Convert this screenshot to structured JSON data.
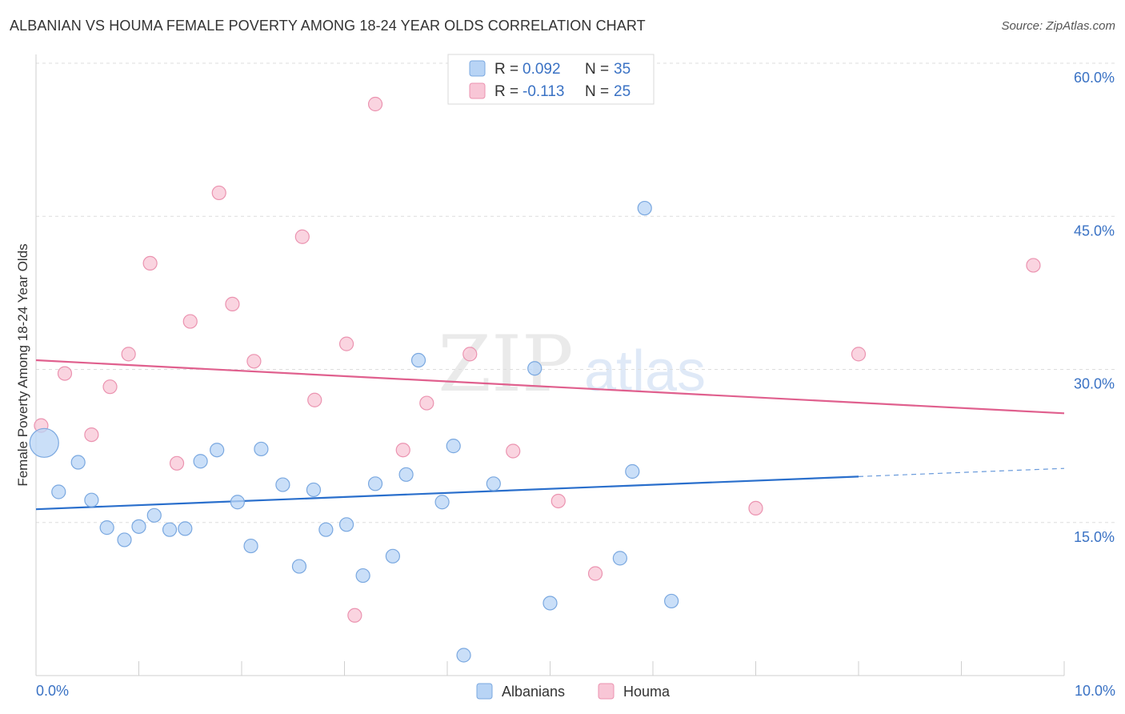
{
  "title": "ALBANIAN VS HOUMA FEMALE POVERTY AMONG 18-24 YEAR OLDS CORRELATION CHART",
  "source": "Source: ZipAtlas.com",
  "watermark": {
    "zip": "ZIP",
    "atlas": "atlas"
  },
  "legend_box": {
    "r_label": "R = ",
    "n_label": "N = ",
    "rows": [
      {
        "r": "0.092",
        "n": "35"
      },
      {
        "r": "-0.113",
        "n": "25"
      }
    ]
  },
  "chart_data": {
    "type": "scatter",
    "title": "ALBANIAN VS HOUMA FEMALE POVERTY AMONG 18-24 YEAR OLDS CORRELATION CHART",
    "xlabel": "",
    "ylabel": "Female Poverty Among 18-24 Year Olds",
    "xlim": [
      0,
      10
    ],
    "ylim": [
      0,
      63
    ],
    "x_tick_labels": [
      "0.0%",
      "10.0%"
    ],
    "y_ticks": [
      {
        "value": 15,
        "label": "15.0%"
      },
      {
        "value": 30,
        "label": "30.0%"
      },
      {
        "value": 45,
        "label": "45.0%"
      },
      {
        "value": 60,
        "label": "60.0%"
      }
    ],
    "colors": {
      "albanians_fill": "#b8d4f5",
      "albanians_stroke": "#7aa8e0",
      "albanians_line": "#2a6fcc",
      "houma_fill": "#f8c6d6",
      "houma_stroke": "#eb93b0",
      "houma_line": "#e0608e",
      "value_text": "#3a72c4"
    },
    "series": [
      {
        "name": "Albanians",
        "r": 0.092,
        "n": 35,
        "trend": {
          "x0": 0,
          "y0": 16.3,
          "x1": 8.0,
          "y1": 19.5,
          "dash_to_x": 10.0,
          "dash_to_y": 20.3
        },
        "points": [
          {
            "x": 0.08,
            "y": 22.8,
            "big": true
          },
          {
            "x": 0.22,
            "y": 18.0
          },
          {
            "x": 0.41,
            "y": 20.9
          },
          {
            "x": 0.54,
            "y": 17.2
          },
          {
            "x": 0.69,
            "y": 14.5
          },
          {
            "x": 0.86,
            "y": 13.3
          },
          {
            "x": 1.0,
            "y": 14.6
          },
          {
            "x": 1.15,
            "y": 15.7
          },
          {
            "x": 1.3,
            "y": 14.3
          },
          {
            "x": 1.45,
            "y": 14.4
          },
          {
            "x": 1.6,
            "y": 21.0
          },
          {
            "x": 1.76,
            "y": 22.1
          },
          {
            "x": 1.96,
            "y": 17.0
          },
          {
            "x": 2.09,
            "y": 12.7
          },
          {
            "x": 2.19,
            "y": 22.2
          },
          {
            "x": 2.4,
            "y": 18.7
          },
          {
            "x": 2.56,
            "y": 10.7
          },
          {
            "x": 2.7,
            "y": 18.2
          },
          {
            "x": 2.82,
            "y": 14.3
          },
          {
            "x": 3.02,
            "y": 14.8
          },
          {
            "x": 3.18,
            "y": 9.8
          },
          {
            "x": 3.3,
            "y": 18.8
          },
          {
            "x": 3.47,
            "y": 11.7
          },
          {
            "x": 3.6,
            "y": 19.7
          },
          {
            "x": 3.72,
            "y": 30.9
          },
          {
            "x": 3.95,
            "y": 17.0
          },
          {
            "x": 4.06,
            "y": 22.5
          },
          {
            "x": 4.16,
            "y": 2.0
          },
          {
            "x": 4.45,
            "y": 18.8
          },
          {
            "x": 4.85,
            "y": 30.1
          },
          {
            "x": 5.0,
            "y": 7.1
          },
          {
            "x": 5.68,
            "y": 11.5
          },
          {
            "x": 5.8,
            "y": 20.0
          },
          {
            "x": 5.92,
            "y": 45.8
          },
          {
            "x": 6.18,
            "y": 7.3
          }
        ]
      },
      {
        "name": "Houma",
        "r": -0.113,
        "n": 25,
        "trend": {
          "x0": 0,
          "y0": 30.9,
          "x1": 10.0,
          "y1": 25.7
        },
        "points": [
          {
            "x": 0.05,
            "y": 24.5
          },
          {
            "x": 0.28,
            "y": 29.6
          },
          {
            "x": 0.54,
            "y": 23.6
          },
          {
            "x": 0.72,
            "y": 28.3
          },
          {
            "x": 0.9,
            "y": 31.5
          },
          {
            "x": 1.11,
            "y": 40.4
          },
          {
            "x": 1.37,
            "y": 20.8
          },
          {
            "x": 1.5,
            "y": 34.7
          },
          {
            "x": 1.78,
            "y": 47.3
          },
          {
            "x": 1.91,
            "y": 36.4
          },
          {
            "x": 2.12,
            "y": 30.8
          },
          {
            "x": 2.59,
            "y": 43.0
          },
          {
            "x": 2.71,
            "y": 27.0
          },
          {
            "x": 3.02,
            "y": 32.5
          },
          {
            "x": 3.1,
            "y": 5.9
          },
          {
            "x": 3.3,
            "y": 56.0
          },
          {
            "x": 3.57,
            "y": 22.1
          },
          {
            "x": 3.8,
            "y": 26.7
          },
          {
            "x": 4.22,
            "y": 31.5
          },
          {
            "x": 4.64,
            "y": 22.0
          },
          {
            "x": 5.08,
            "y": 17.1
          },
          {
            "x": 5.44,
            "y": 10.0
          },
          {
            "x": 7.0,
            "y": 16.4
          },
          {
            "x": 8.0,
            "y": 31.5
          },
          {
            "x": 9.7,
            "y": 40.2
          }
        ]
      }
    ]
  }
}
